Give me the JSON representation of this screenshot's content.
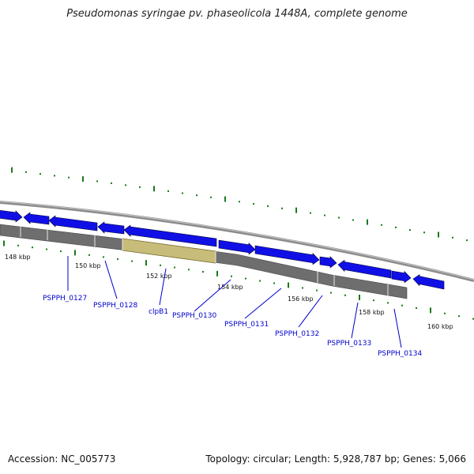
{
  "title": "Pseudomonas syringae pv. phaseolicola 1448A, complete genome",
  "footer": {
    "accession": "Accession: NC_005773",
    "summary": "Topology: circular; Length: 5,928,787 bp; Genes: 5,066"
  },
  "colors": {
    "forward_gene": "#1010e6",
    "reverse_gene": "#0a0a9e",
    "orf_band": "#6e6e6e",
    "highlight_band": "#c8bc7a",
    "tick": "#1a7a1a",
    "backbone": "#8c8c8c",
    "label": "#0000cc"
  },
  "scale_labels": [
    "148 kbp",
    "150 kbp",
    "152 kbp",
    "154 kbp",
    "156 kbp",
    "158 kbp",
    "160 kbp"
  ],
  "gene_labels": [
    "PSPPH_0127",
    "PSPPH_0128",
    "clpB1",
    "PSPPH_0130",
    "PSPPH_0131",
    "PSPPH_0132",
    "PSPPH_0133",
    "PSPPH_0134"
  ]
}
